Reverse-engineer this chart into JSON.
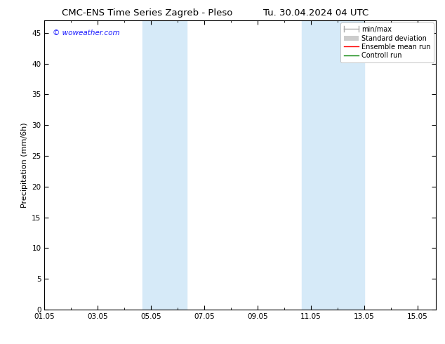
{
  "title": "CMC-ENS Time Series Zagreb - Pleso",
  "title2": "Tu. 30.04.2024 04 UTC",
  "ylabel": "Precipitation (mm/6h)",
  "ylim": [
    0,
    47
  ],
  "yticks": [
    0,
    5,
    10,
    15,
    20,
    25,
    30,
    35,
    40,
    45
  ],
  "xtick_labels": [
    "01.05",
    "03.05",
    "05.05",
    "07.05",
    "09.05",
    "11.05",
    "13.05",
    "15.05"
  ],
  "xtick_positions": [
    0,
    2,
    4,
    6,
    8,
    10,
    12,
    14
  ],
  "xlim": [
    0,
    14.7
  ],
  "shade_bands": [
    {
      "x_start": 3.67,
      "x_end": 5.33,
      "color": "#d6eaf8",
      "alpha": 1.0
    },
    {
      "x_start": 9.67,
      "x_end": 12.0,
      "color": "#d6eaf8",
      "alpha": 1.0
    }
  ],
  "watermark": "© woweather.com",
  "watermark_color": "#1a1aff",
  "bg_color": "#ffffff",
  "title_fontsize": 9.5,
  "tick_fontsize": 7.5,
  "ylabel_fontsize": 8,
  "watermark_fontsize": 7.5,
  "legend_fontsize": 7,
  "minmax_color": "#aaaaaa",
  "stddev_color": "#cccccc",
  "ensemble_color": "#ff0000",
  "control_color": "#008000"
}
